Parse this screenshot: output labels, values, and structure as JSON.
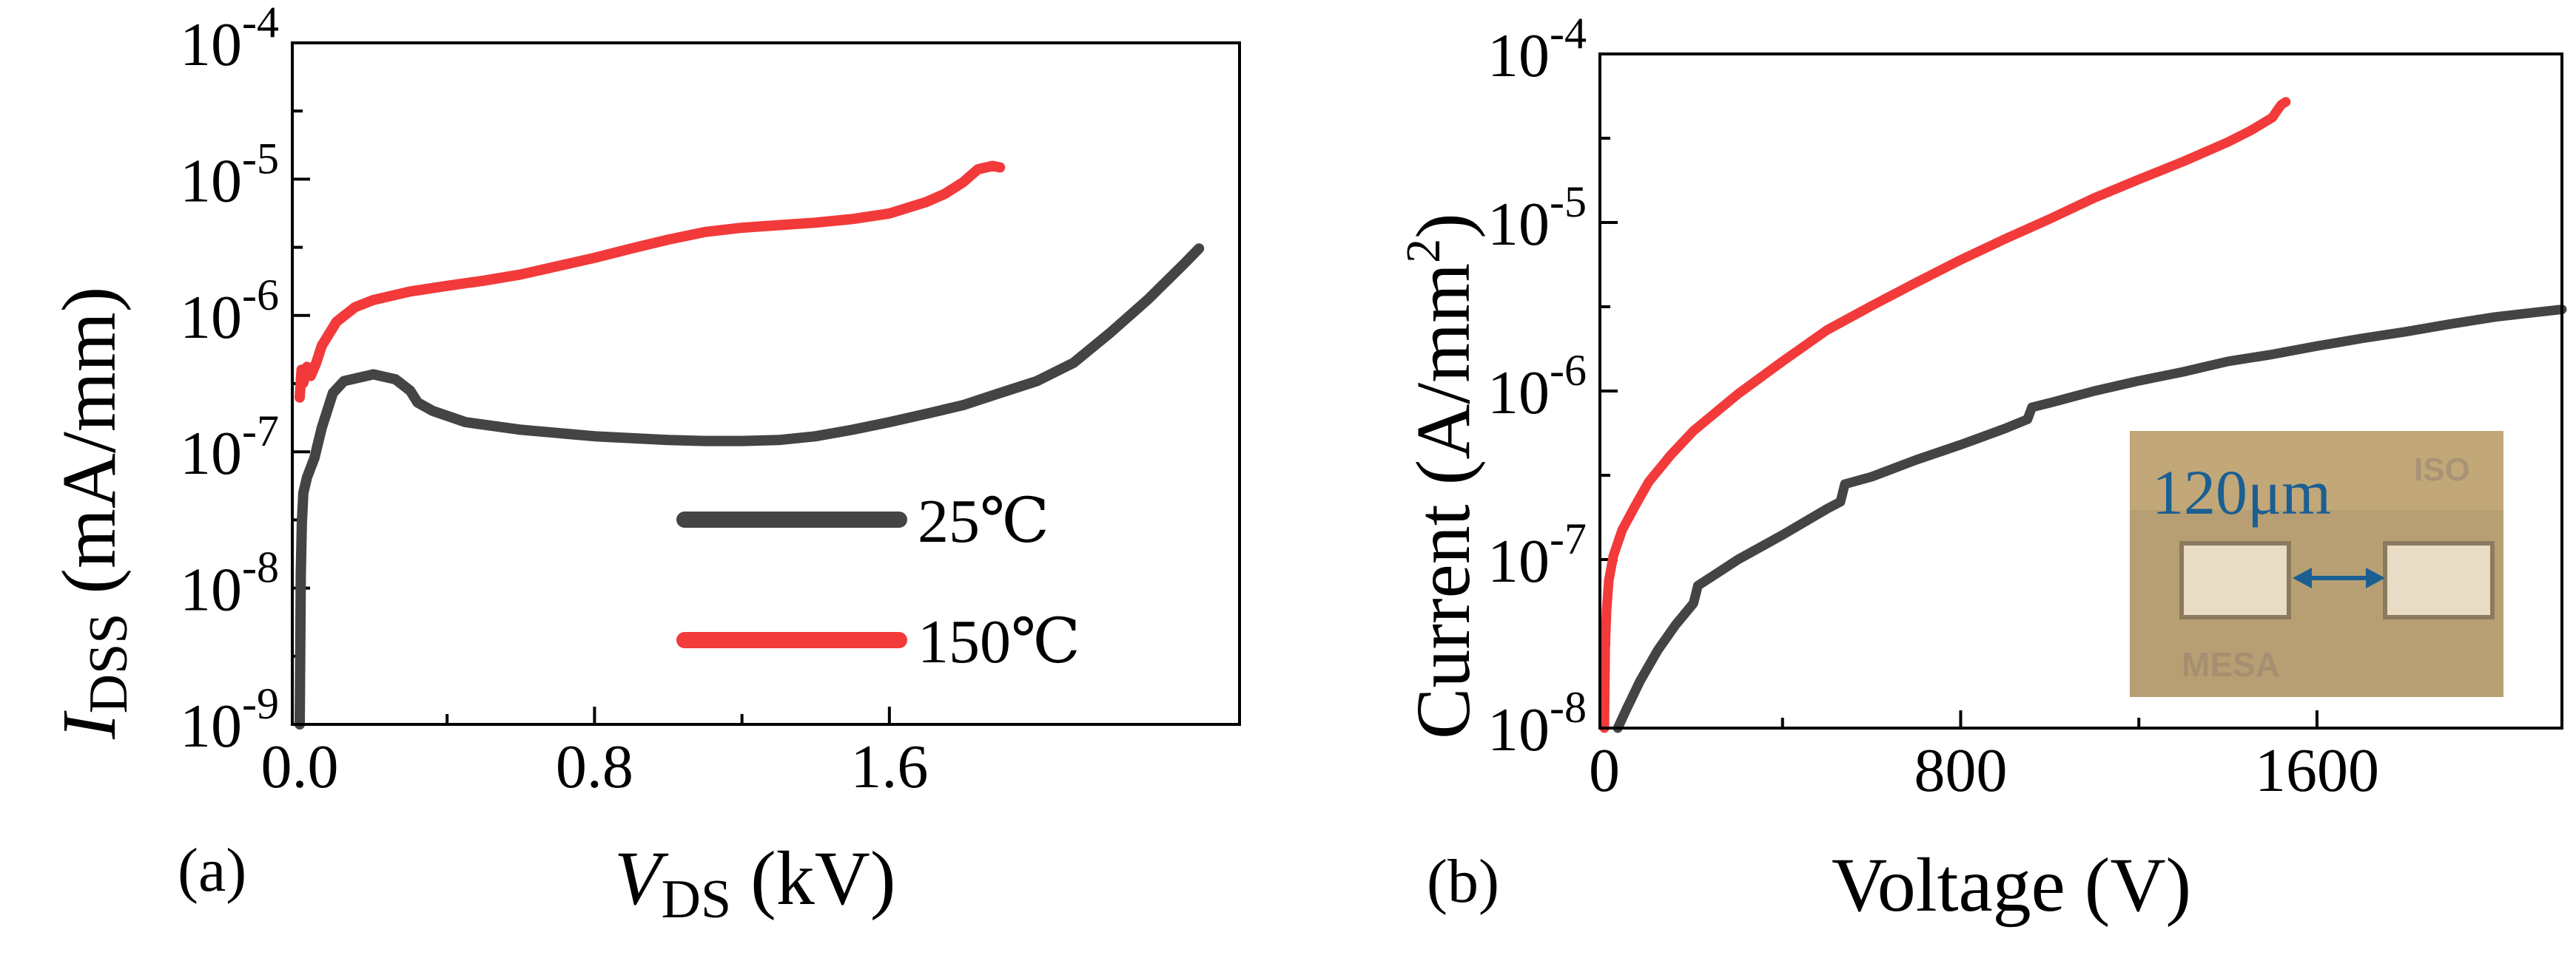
{
  "chart_data": [
    {
      "panel": "(a)",
      "type": "line",
      "title": "",
      "xlabel": "V",
      "xlabel_sub": "DS",
      "xlabel_unit": " (kV)",
      "ylabel": "I",
      "ylabel_sub": "DSS",
      "ylabel_unit": " (mA/mm)",
      "xlim": [
        -0.02,
        2.55
      ],
      "ylim": [
        1e-09,
        0.0001
      ],
      "y_scale": "log",
      "x_ticks": [
        "0.0",
        "0.8",
        "1.6"
      ],
      "x_tick_values": [
        0.0,
        0.8,
        1.6
      ],
      "y_tick_exponents": [
        "-9",
        "-8",
        "-7",
        "-6",
        "-5",
        "-4"
      ],
      "y_tick_base": "10",
      "grid": false,
      "legend_position": "lower-right",
      "series": [
        {
          "name": "25℃",
          "color": "#444444",
          "x": [
            0.0,
            0.003,
            0.006,
            0.01,
            0.02,
            0.04,
            0.06,
            0.09,
            0.12,
            0.2,
            0.26,
            0.3,
            0.32,
            0.36,
            0.45,
            0.6,
            0.8,
            1.0,
            1.1,
            1.2,
            1.3,
            1.4,
            1.5,
            1.6,
            1.7,
            1.8,
            1.9,
            2.0,
            2.1,
            2.2,
            2.3,
            2.4,
            2.44
          ],
          "y": [
            1e-09,
            1.3e-08,
            3e-08,
            5e-08,
            6.5e-08,
            9e-08,
            1.5e-07,
            2.7e-07,
            3.3e-07,
            3.7e-07,
            3.4e-07,
            2.8e-07,
            2.3e-07,
            2e-07,
            1.65e-07,
            1.45e-07,
            1.3e-07,
            1.22e-07,
            1.2e-07,
            1.2e-07,
            1.22e-07,
            1.3e-07,
            1.45e-07,
            1.65e-07,
            1.9e-07,
            2.2e-07,
            2.7e-07,
            3.3e-07,
            4.5e-07,
            7.5e-07,
            1.3e-06,
            2.4e-06,
            3.1e-06
          ]
        },
        {
          "name": "150℃",
          "color": "#f23a3a",
          "x": [
            0.0,
            0.005,
            0.01,
            0.02,
            0.03,
            0.045,
            0.06,
            0.1,
            0.15,
            0.2,
            0.3,
            0.4,
            0.5,
            0.6,
            0.7,
            0.8,
            0.9,
            1.0,
            1.1,
            1.2,
            1.3,
            1.4,
            1.5,
            1.6,
            1.7,
            1.75,
            1.8,
            1.84,
            1.88,
            1.9
          ],
          "y": [
            2.5e-07,
            4e-07,
            3.2e-07,
            4.2e-07,
            3.6e-07,
            4.5e-07,
            6e-07,
            9e-07,
            1.15e-06,
            1.3e-06,
            1.5e-06,
            1.65e-06,
            1.8e-06,
            2e-06,
            2.3e-06,
            2.65e-06,
            3.1e-06,
            3.6e-06,
            4.1e-06,
            4.4e-06,
            4.6e-06,
            4.8e-06,
            5.1e-06,
            5.6e-06,
            6.8e-06,
            7.8e-06,
            9.5e-06,
            1.18e-05,
            1.25e-05,
            1.22e-05
          ]
        }
      ]
    },
    {
      "panel": "(b)",
      "type": "line",
      "title": "",
      "xlabel": "Voltage (V)",
      "ylabel": "Current (A/mm",
      "ylabel_sup": "2",
      "ylabel_end": ")",
      "xlim": [
        -10,
        2150
      ],
      "ylim": [
        1e-08,
        0.0001
      ],
      "y_scale": "log",
      "x_ticks": [
        "0",
        "800",
        "1600"
      ],
      "x_tick_values": [
        0,
        800,
        1600
      ],
      "y_tick_exponents": [
        "-8",
        "-7",
        "-6",
        "-5",
        "-4"
      ],
      "y_tick_base": "10",
      "grid": false,
      "series": [
        {
          "color": "#444444",
          "x": [
            30,
            50,
            80,
            120,
            160,
            200,
            210,
            250,
            300,
            400,
            500,
            530,
            540,
            600,
            700,
            800,
            900,
            950,
            960,
            1000,
            1100,
            1200,
            1300,
            1400,
            1500,
            1600,
            1700,
            1800,
            1900,
            2000,
            2100,
            2150
          ],
          "y": [
            1e-08,
            1.3e-08,
            1.9e-08,
            2.9e-08,
            4.1e-08,
            5.5e-08,
            7e-08,
            8.2e-08,
            1e-07,
            1.4e-07,
            2e-07,
            2.2e-07,
            2.8e-07,
            3.1e-07,
            3.9e-07,
            4.8e-07,
            6e-07,
            6.8e-07,
            8e-07,
            8.5e-07,
            1e-06,
            1.15e-06,
            1.3e-06,
            1.5e-06,
            1.65e-06,
            1.85e-06,
            2.05e-06,
            2.25e-06,
            2.5e-06,
            2.75e-06,
            2.95e-06,
            3.05e-06
          ]
        },
        {
          "color": "#f23a3a",
          "x": [
            0,
            2,
            5,
            10,
            20,
            40,
            70,
            100,
            150,
            200,
            300,
            400,
            500,
            600,
            700,
            800,
            900,
            1000,
            1100,
            1200,
            1300,
            1400,
            1450,
            1480,
            1500,
            1510,
            1520,
            1530
          ],
          "y": [
            1e-08,
            3e-08,
            5e-08,
            7.5e-08,
            1.05e-07,
            1.5e-07,
            2.1e-07,
            2.9e-07,
            4.2e-07,
            5.8e-07,
            9.6e-07,
            1.5e-06,
            2.3e-06,
            3.2e-06,
            4.4e-06,
            6e-06,
            8e-06,
            1.05e-05,
            1.4e-05,
            1.8e-05,
            2.3e-05,
            3e-05,
            3.5e-05,
            3.9e-05,
            4.2e-05,
            4.6e-05,
            5e-05,
            5.2e-05
          ]
        }
      ],
      "inset": {
        "dimension_label": "120μm",
        "region_labels": [
          "ISO",
          "MESA"
        ]
      }
    }
  ]
}
